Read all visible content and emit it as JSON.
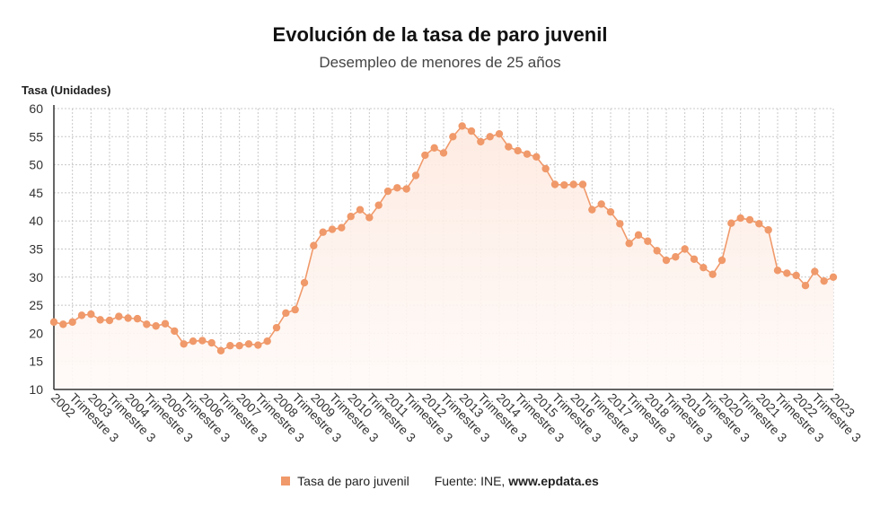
{
  "header": {
    "title": "Evolución de la tasa de paro juvenil",
    "subtitle": "Desempleo de menores de 25 años"
  },
  "legend": {
    "series_label": "Tasa de paro juvenil",
    "source_prefix": "Fuente: INE, ",
    "source_site": "www.epdata.es"
  },
  "colors": {
    "series": "#f0996a",
    "area_top": "#fde9df",
    "area_bottom": "#fffaf8",
    "grid": "#c8c8c8"
  },
  "chart_data": {
    "type": "area",
    "ylabel": "Tasa (Unidades)",
    "ylim": [
      10,
      60
    ],
    "yticks": [
      10,
      15,
      20,
      25,
      30,
      35,
      40,
      45,
      50,
      55,
      60
    ],
    "grid": true,
    "legend_position": "bottom-center",
    "xtick_labels": [
      "2002",
      "Trimestre 3",
      "2003",
      "Trimestre 3",
      "2004",
      "Trimestre 3",
      "2005",
      "Trimestre 3",
      "2006",
      "Trimestre 3",
      "2007",
      "Trimestre 3",
      "2008",
      "Trimestre 3",
      "2009",
      "Trimestre 3",
      "2010",
      "Trimestre 3",
      "2011",
      "Trimestre 3",
      "2012",
      "Trimestre 3",
      "2013",
      "Trimestre 3",
      "2014",
      "Trimestre 3",
      "2015",
      "Trimestre 3",
      "2016",
      "Trimestre 3",
      "2017",
      "Trimestre 3",
      "2018",
      "Trimestre 3",
      "2019",
      "Trimestre 3",
      "2020",
      "Trimestre 3",
      "2021",
      "Trimestre 3",
      "2022",
      "Trimestre 3",
      "2023"
    ],
    "series": [
      {
        "name": "Tasa de paro juvenil",
        "values": [
          22.0,
          21.6,
          22.0,
          23.2,
          23.4,
          22.4,
          22.3,
          23.0,
          22.7,
          22.6,
          21.6,
          21.3,
          21.7,
          20.4,
          18.1,
          18.6,
          18.7,
          18.3,
          16.9,
          17.8,
          17.8,
          18.1,
          17.9,
          18.6,
          21.0,
          23.6,
          24.2,
          29.0,
          35.6,
          38.0,
          38.5,
          38.8,
          40.8,
          42.0,
          40.6,
          42.8,
          45.3,
          45.9,
          45.7,
          48.1,
          51.7,
          53.0,
          52.1,
          55.0,
          56.9,
          56.0,
          54.1,
          55.0,
          55.5,
          53.2,
          52.5,
          51.9,
          51.4,
          49.3,
          46.5,
          46.4,
          46.5,
          46.5,
          42.0,
          43.0,
          41.6,
          39.5,
          36.0,
          37.5,
          36.4,
          34.7,
          33.0,
          33.6,
          35.0,
          33.2,
          31.7,
          30.5,
          33.0,
          39.6,
          40.5,
          40.2,
          39.5,
          38.4,
          31.2,
          30.7,
          30.3,
          28.5,
          31.0,
          29.3,
          30.0
        ]
      }
    ]
  }
}
